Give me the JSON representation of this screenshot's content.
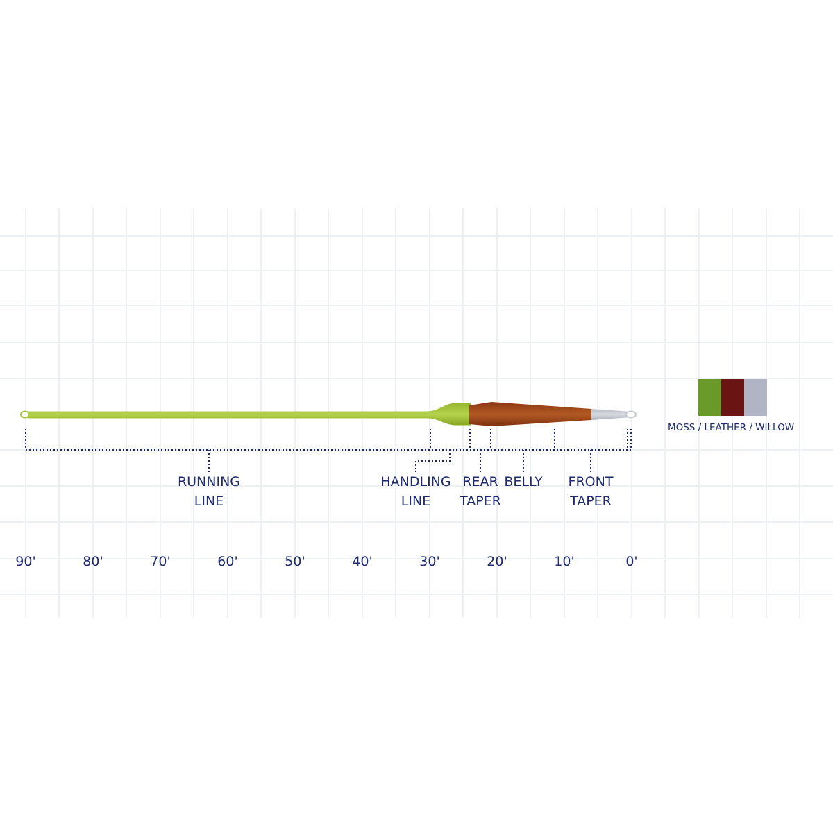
{
  "diagram": {
    "section_labels": {
      "running_line": [
        "RUNNING",
        "LINE"
      ],
      "handling_line": [
        "HANDLING",
        "LINE"
      ],
      "rear_taper": [
        "REAR",
        "TAPER"
      ],
      "belly": [
        "BELLY"
      ],
      "front_taper": [
        "FRONT",
        "TAPER"
      ]
    },
    "scale_labels": [
      "90'",
      "80'",
      "70'",
      "60'",
      "50'",
      "40'",
      "30'",
      "20'",
      "10'",
      "0'"
    ],
    "color_legend": {
      "label": "MOSS / LEATHER / WILLOW",
      "swatches": [
        {
          "name": "moss",
          "color": "#6a9a2a"
        },
        {
          "name": "leather",
          "color": "#6b1414"
        },
        {
          "name": "willow",
          "color": "#b0b4c4"
        }
      ]
    },
    "colors": {
      "running_line": "#a6c63a",
      "head": "#a44a1c",
      "tip": "#c4c8d0",
      "text": "#1d2a6e",
      "grid": "#eef1f4"
    }
  }
}
